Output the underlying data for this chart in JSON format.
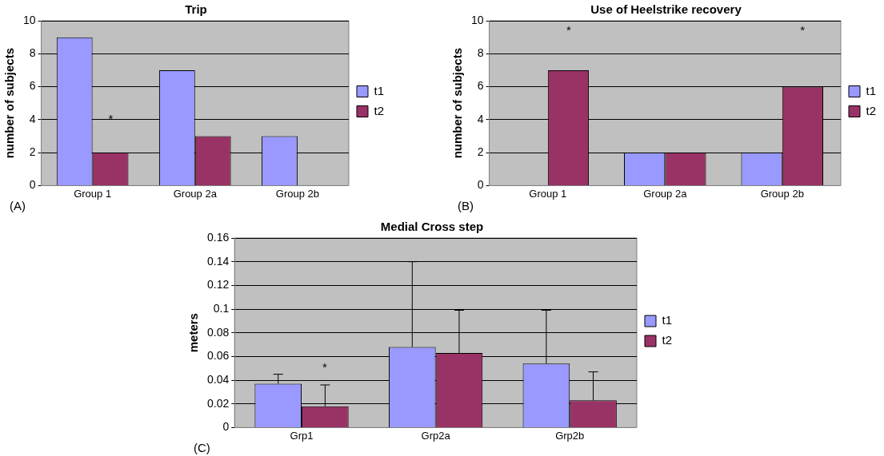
{
  "chart_data": [
    {
      "type": "bar",
      "title": "Trip",
      "ylabel": "number of subjects",
      "categories": [
        "Group 1",
        "Group 2a",
        "Group 2b"
      ],
      "series": [
        {
          "name": "t1",
          "color": "#9999ff",
          "values": [
            9,
            7,
            3
          ]
        },
        {
          "name": "t2",
          "color": "#993366",
          "values": [
            2,
            3,
            0
          ]
        }
      ],
      "ylim": [
        0,
        10
      ],
      "yticks": [
        0,
        2,
        4,
        6,
        8,
        10
      ],
      "grid": "y",
      "legend": "right",
      "annotations": [
        "*",
        "(A)"
      ]
    },
    {
      "type": "bar",
      "title": "Use of Heelstrike recovery",
      "ylabel": "number of subjects",
      "categories": [
        "Group 1",
        "Group 2a",
        "Group 2b"
      ],
      "series": [
        {
          "name": "t1",
          "color": "#9999ff",
          "values": [
            0,
            2,
            2
          ]
        },
        {
          "name": "t2",
          "color": "#993366",
          "values": [
            7,
            2,
            6
          ]
        }
      ],
      "ylim": [
        0,
        10
      ],
      "yticks": [
        0,
        2,
        4,
        6,
        8,
        10
      ],
      "grid": "y",
      "legend": "right",
      "annotations": [
        "*",
        "*",
        "(B)"
      ]
    },
    {
      "type": "bar",
      "title": "Medial Cross step",
      "ylabel": "meters",
      "categories": [
        "Grp1",
        "Grp2a",
        "Grp2b"
      ],
      "series": [
        {
          "name": "t1",
          "color": "#9999ff",
          "values": [
            0.037,
            0.068,
            0.054
          ],
          "errors": [
            [
              0.037,
              0.045
            ],
            [
              0.068,
              0.14
            ],
            [
              0.054,
              0.099
            ]
          ]
        },
        {
          "name": "t2",
          "color": "#993366",
          "values": [
            0.018,
            0.063,
            0.023
          ],
          "errors": [
            [
              0.018,
              0.036
            ],
            [
              0.063,
              0.099
            ],
            [
              0.023,
              0.047
            ]
          ]
        }
      ],
      "ylim": [
        0,
        0.16
      ],
      "yticks": [
        0,
        0.02,
        0.04,
        0.06,
        0.08,
        0.1,
        0.12,
        0.14,
        0.16
      ],
      "grid": "y",
      "legend": "right",
      "annotations": [
        "*",
        "(C)"
      ]
    }
  ]
}
